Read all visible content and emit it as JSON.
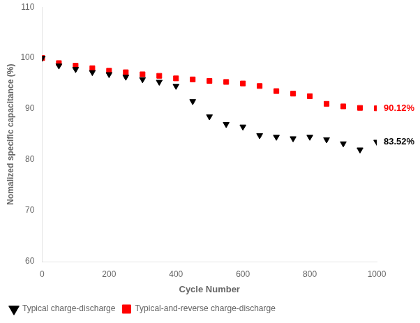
{
  "chart_data": {
    "type": "scatter",
    "xlabel": "Cycle Number",
    "ylabel": "Nomalized specific capacitance (%)",
    "x": [
      0,
      50,
      100,
      150,
      200,
      250,
      300,
      350,
      400,
      450,
      500,
      550,
      600,
      650,
      700,
      750,
      800,
      850,
      900,
      950,
      1000
    ],
    "series": [
      {
        "name": "Typical charge-discharge",
        "color": "#000000",
        "marker": "triangle_down",
        "values": [
          100,
          98.5,
          97.8,
          97.2,
          96.8,
          96.3,
          95.8,
          95.3,
          94.5,
          91.5,
          88.5,
          87.0,
          86.5,
          84.8,
          84.5,
          84.2,
          84.5,
          84.0,
          83.2,
          82.0,
          83.52
        ],
        "annotation": "83.52%"
      },
      {
        "name": "Typical-and-reverse charge-discharge",
        "color": "#ff0000",
        "marker": "square",
        "values": [
          100,
          99.0,
          98.5,
          98.0,
          97.5,
          97.2,
          96.8,
          96.5,
          96.0,
          95.8,
          95.5,
          95.3,
          95.0,
          94.5,
          93.5,
          93.0,
          92.5,
          91.0,
          90.5,
          90.2,
          90.12
        ],
        "annotation": "90.12%"
      }
    ],
    "xlim": [
      0,
      1000
    ],
    "xticks": [
      0,
      200,
      400,
      600,
      800,
      1000
    ],
    "ylim": [
      60,
      110
    ],
    "yticks": [
      60,
      70,
      80,
      90,
      100,
      110
    ],
    "grid": false,
    "legend": "lower left"
  }
}
